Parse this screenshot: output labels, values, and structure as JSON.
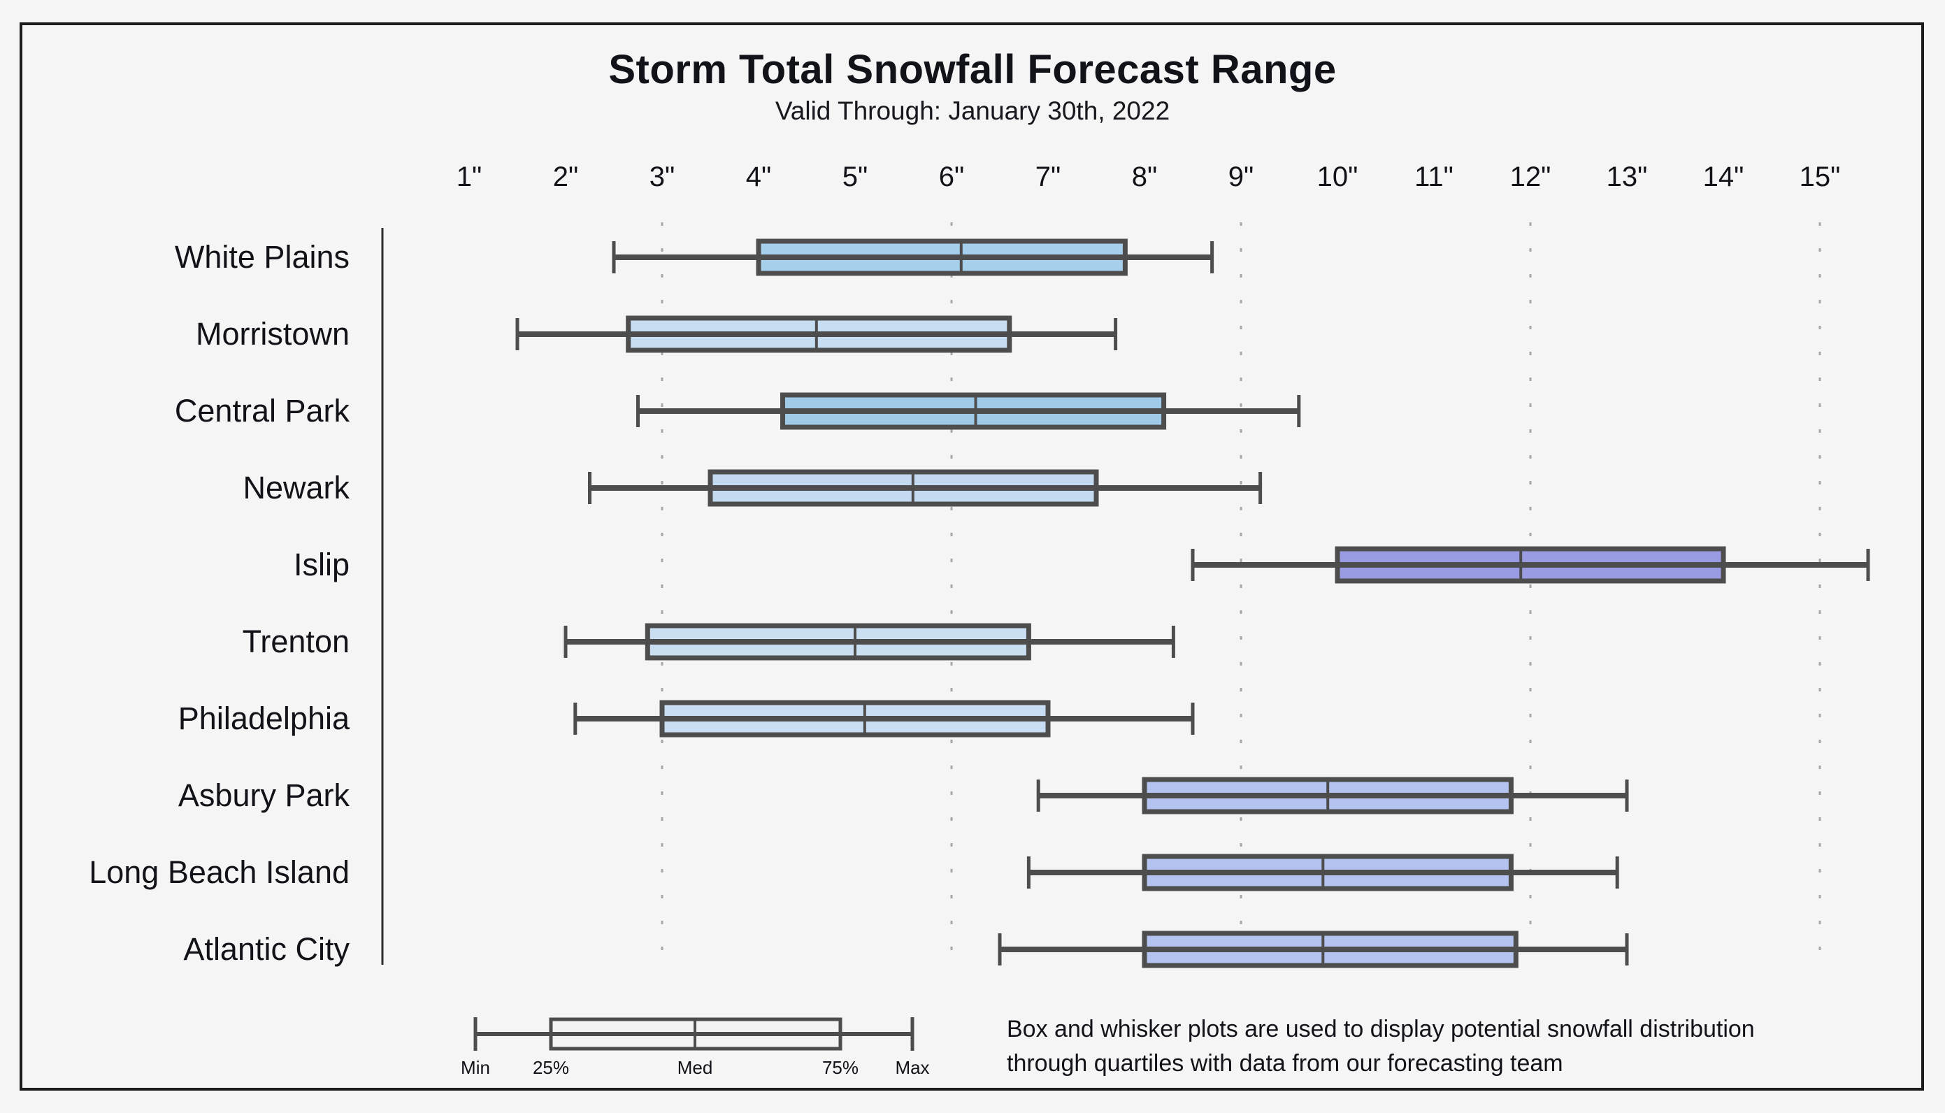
{
  "title": "Storm Total Snowfall Forecast Range",
  "subtitle": "Valid Through: January 30th, 2022",
  "footer": {
    "line1": "Box and whisker plots are used to display potential snowfall distribution",
    "line2": "through quartiles with data from our forecasting team"
  },
  "legend": {
    "labels": {
      "min": "Min",
      "q1": "25%",
      "median": "Med",
      "q3": "75%",
      "max": "Max"
    }
  },
  "colors": {
    "background": "#f5f5f6",
    "frame_border": "#1c1c1c",
    "axis_line": "#2e2e2e",
    "gridline": "#a6a6a6",
    "box_stroke": "#4d4d4d",
    "whisker": "#4d4d4d",
    "legend_fill": "#f4f4f4",
    "text": "#111318"
  },
  "chart_data": {
    "type": "boxplot",
    "orientation": "horizontal",
    "title": "Storm Total Snowfall Forecast Range",
    "subtitle": "Valid Through: January 30th, 2022",
    "unit": "inches",
    "xlim": [
      0.5,
      15.8
    ],
    "x_ticks": [
      1,
      2,
      3,
      4,
      5,
      6,
      7,
      8,
      9,
      10,
      11,
      12,
      13,
      14,
      15
    ],
    "x_tick_labels": [
      "1\"",
      "2\"",
      "3\"",
      "4\"",
      "5\"",
      "6\"",
      "7\"",
      "8\"",
      "9\"",
      "10\"",
      "11\"",
      "12\"",
      "13\"",
      "14\"",
      "15\""
    ],
    "gridlines_at": [
      3,
      6,
      9,
      12,
      15
    ],
    "grid": "dotted-vertical",
    "legend_position": "bottom-left",
    "categories": [
      "White Plains",
      "Morristown",
      "Central Park",
      "Newark",
      "Islip",
      "Trenton",
      "Philadelphia",
      "Asbury Park",
      "Long Beach Island",
      "Atlantic City"
    ],
    "series": [
      {
        "name": "White Plains",
        "min": 2.5,
        "q1": 4.0,
        "median": 6.1,
        "q3": 7.8,
        "max": 8.7,
        "color": "#a6cfec"
      },
      {
        "name": "Morristown",
        "min": 1.5,
        "q1": 2.65,
        "median": 4.6,
        "q3": 6.6,
        "max": 7.7,
        "color": "#c7ddf2"
      },
      {
        "name": "Central Park",
        "min": 2.75,
        "q1": 4.25,
        "median": 6.25,
        "q3": 8.2,
        "max": 9.6,
        "color": "#9fcbe9"
      },
      {
        "name": "Newark",
        "min": 2.25,
        "q1": 3.5,
        "median": 5.6,
        "q3": 7.5,
        "max": 9.2,
        "color": "#c3daf0"
      },
      {
        "name": "Islip",
        "min": 8.5,
        "q1": 10.0,
        "median": 11.9,
        "q3": 14.0,
        "max": 15.5,
        "color": "#9a9ce3"
      },
      {
        "name": "Trenton",
        "min": 2.0,
        "q1": 2.85,
        "median": 5.0,
        "q3": 6.8,
        "max": 8.3,
        "color": "#cbdff3"
      },
      {
        "name": "Philadelphia",
        "min": 2.1,
        "q1": 3.0,
        "median": 5.1,
        "q3": 7.0,
        "max": 8.5,
        "color": "#c9def2"
      },
      {
        "name": "Asbury Park",
        "min": 6.9,
        "q1": 8.0,
        "median": 9.9,
        "q3": 11.8,
        "max": 13.0,
        "color": "#b3c2ee"
      },
      {
        "name": "Long Beach Island",
        "min": 6.8,
        "q1": 8.0,
        "median": 9.85,
        "q3": 11.8,
        "max": 12.9,
        "color": "#b3c2ee"
      },
      {
        "name": "Atlantic City",
        "min": 6.5,
        "q1": 8.0,
        "median": 9.85,
        "q3": 11.85,
        "max": 13.0,
        "color": "#b3c2ee"
      }
    ]
  }
}
